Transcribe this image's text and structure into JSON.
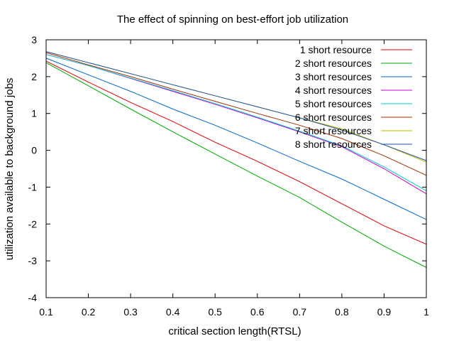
{
  "chart_data": {
    "type": "line",
    "title": "The effect of spinning on best-effort job utilization",
    "xlabel": "critical section length(RTSL)",
    "ylabel": "utilization available to background jobs",
    "xlim": [
      0.1,
      1
    ],
    "ylim": [
      -4,
      3
    ],
    "xticks": [
      0.1,
      0.2,
      0.3,
      0.4,
      0.5,
      0.6,
      0.7,
      0.8,
      0.9,
      1
    ],
    "xtick_labels": [
      "0.1",
      "0.2",
      "0.3",
      "0.4",
      "0.5",
      "0.6",
      "0.7",
      "0.8",
      "0.9",
      "1"
    ],
    "yticks": [
      -4,
      -3,
      -2,
      -1,
      0,
      1,
      2,
      3
    ],
    "ytick_labels": [
      "-4",
      "-3",
      "-2",
      "-1",
      "0",
      "1",
      "2",
      "3"
    ],
    "grid": false,
    "legend_position": "top-right",
    "x": [
      0.1,
      0.2,
      0.3,
      0.4,
      0.5,
      0.6,
      0.7,
      0.8,
      0.9,
      1.0
    ],
    "series": [
      {
        "name": "1 short resource",
        "color": "#dd0000",
        "values": [
          2.42,
          1.85,
          1.3,
          0.78,
          0.22,
          -0.3,
          -0.85,
          -1.45,
          -2.05,
          -2.55
        ]
      },
      {
        "name": "2 short resources",
        "color": "#00aa00",
        "values": [
          2.38,
          1.75,
          1.12,
          0.5,
          -0.1,
          -0.7,
          -1.28,
          -1.95,
          -2.6,
          -3.18
        ]
      },
      {
        "name": "3 short resources",
        "color": "#0066cc",
        "values": [
          2.5,
          2.05,
          1.6,
          1.12,
          0.68,
          0.2,
          -0.3,
          -0.78,
          -1.33,
          -1.88
        ]
      },
      {
        "name": "4 short resources",
        "color": "#cc00cc",
        "values": [
          2.6,
          2.3,
          1.95,
          1.6,
          1.25,
          0.88,
          0.5,
          0.1,
          -0.5,
          -1.18
        ]
      },
      {
        "name": "5 short resources",
        "color": "#00cccc",
        "values": [
          2.6,
          2.3,
          1.96,
          1.62,
          1.27,
          0.9,
          0.52,
          0.12,
          -0.45,
          -1.1
        ]
      },
      {
        "name": "6 short resources",
        "color": "#a03000",
        "values": [
          2.65,
          2.32,
          2.0,
          1.66,
          1.33,
          1.0,
          0.68,
          0.32,
          -0.15,
          -0.68
        ]
      },
      {
        "name": "7 short resources",
        "color": "#bbbb00",
        "values": [
          2.68,
          2.38,
          2.08,
          1.78,
          1.48,
          1.18,
          0.88,
          0.58,
          0.15,
          -0.32
        ]
      },
      {
        "name": "8 short resources",
        "color": "#2050aa",
        "values": [
          2.68,
          2.38,
          2.08,
          1.78,
          1.48,
          1.18,
          0.88,
          0.55,
          0.15,
          -0.28
        ]
      }
    ]
  }
}
